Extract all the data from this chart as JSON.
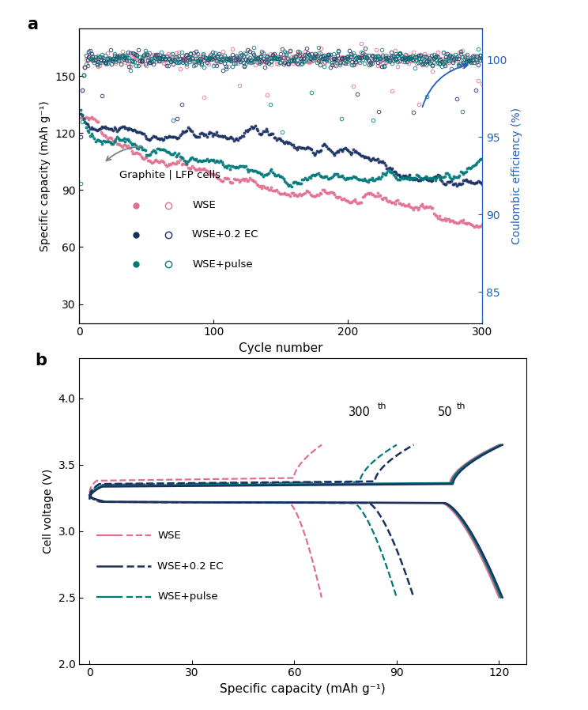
{
  "panel_a": {
    "xlabel": "Cycle number",
    "ylabel_left": "Specific capacity (mAh g⁻¹)",
    "ylabel_right": "Coulombic efficiency (%)",
    "xlim": [
      0,
      300
    ],
    "ylim_left": [
      20,
      175
    ],
    "ylim_right": [
      83,
      102
    ],
    "yticks_left": [
      30,
      60,
      90,
      120,
      150
    ],
    "yticks_right": [
      85,
      90,
      95,
      100
    ],
    "xticks": [
      0,
      100,
      200,
      300
    ],
    "colors": {
      "WSE": "#e07090",
      "WSE_EC": "#1a3060",
      "WSE_pulse": "#007878"
    },
    "legend_title": "Graphite | LFP cells",
    "legend_labels": [
      "WSE",
      "WSE+0.2 EC",
      "WSE+pulse"
    ]
  },
  "panel_b": {
    "xlabel": "Specific capacity (mAh g⁻¹)",
    "ylabel": "Cell voltage (V)",
    "xlim": [
      -3,
      128
    ],
    "ylim": [
      2.0,
      4.3
    ],
    "yticks": [
      2.0,
      2.5,
      3.0,
      3.5,
      4.0
    ],
    "xticks": [
      0,
      30,
      60,
      90,
      120
    ],
    "colors": {
      "WSE": "#e07090",
      "WSE_EC": "#1a3060",
      "WSE_pulse": "#007878"
    },
    "legend_labels": [
      "WSE",
      "WSE+0.2 EC",
      "WSE+pulse"
    ],
    "annot_300": "300",
    "annot_50": "50"
  }
}
